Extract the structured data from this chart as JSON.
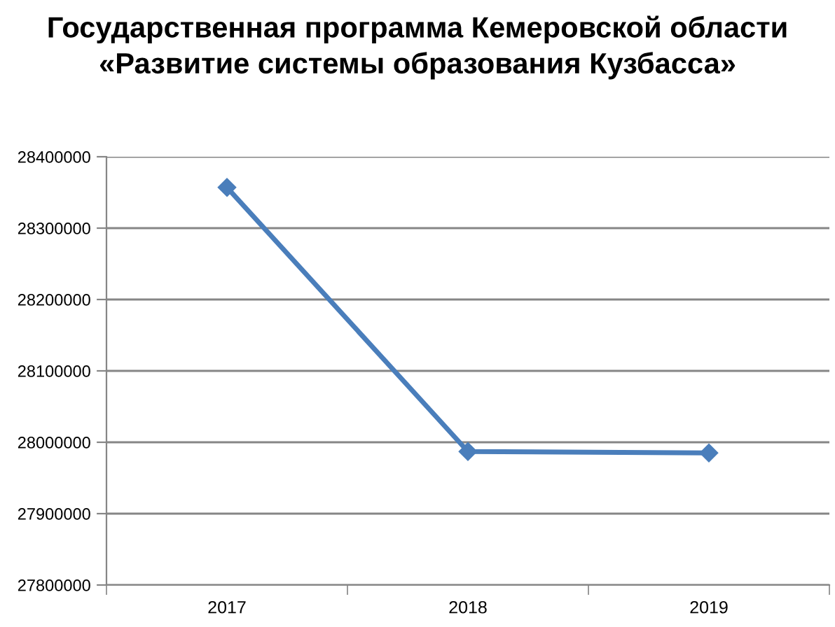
{
  "chart_data": {
    "type": "line",
    "title": "Государственная программа Кемеровской области «Развитие системы образования Кузбасса»",
    "categories": [
      "2017",
      "2018",
      "2019"
    ],
    "series": [
      {
        "color": "#4a7ebb",
        "values": [
          28357000,
          27987000,
          27985000
        ]
      }
    ],
    "ylim": [
      27800000,
      28400000
    ],
    "yticks": [
      27800000,
      27900000,
      28000000,
      28100000,
      28200000,
      28300000,
      28400000
    ],
    "grid": "y",
    "marker": "diamond",
    "line_style": "solid"
  }
}
